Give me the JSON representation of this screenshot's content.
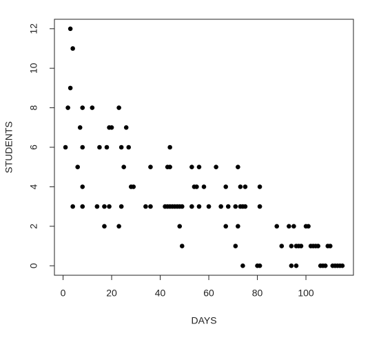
{
  "chart_data": {
    "type": "scatter",
    "x_label": "DAYS",
    "y_label": "STUDENTS",
    "color": "#000000",
    "x": [
      1,
      2,
      3,
      3,
      4,
      4,
      6,
      7,
      8,
      8,
      8,
      8,
      12,
      14,
      15,
      17,
      17,
      18,
      19,
      19,
      20,
      23,
      23,
      24,
      24,
      25,
      26,
      27,
      28,
      29,
      34,
      36,
      36,
      43,
      44,
      44,
      42,
      43,
      44,
      45,
      46,
      47,
      48,
      49,
      48,
      49,
      53,
      54,
      53,
      55,
      56,
      56,
      58,
      60,
      63,
      65,
      67,
      67,
      68,
      71,
      71,
      72,
      72,
      73,
      73,
      74,
      74,
      75,
      75,
      80,
      81,
      81,
      81,
      88,
      90,
      93,
      94,
      94,
      95,
      96,
      96,
      97,
      98,
      100,
      101,
      102,
      103,
      104,
      105,
      106,
      107,
      108,
      109,
      110,
      111,
      112,
      113,
      114,
      115
    ],
    "y": [
      6,
      8,
      9,
      12,
      11,
      3,
      5,
      7,
      8,
      6,
      4,
      3,
      8,
      3,
      6,
      2,
      3,
      6,
      3,
      7,
      7,
      8,
      2,
      6,
      3,
      5,
      7,
      6,
      4,
      4,
      3,
      3,
      5,
      5,
      6,
      5,
      3,
      3,
      3,
      3,
      3,
      3,
      3,
      3,
      2,
      1,
      5,
      4,
      3,
      4,
      5,
      3,
      4,
      3,
      5,
      3,
      4,
      2,
      3,
      1,
      3,
      5,
      2,
      3,
      4,
      0,
      3,
      4,
      3,
      0,
      0,
      4,
      3,
      2,
      1,
      2,
      1,
      0,
      2,
      0,
      1,
      1,
      1,
      2,
      2,
      1,
      1,
      1,
      1,
      0,
      0,
      0,
      1,
      1,
      0,
      0,
      0,
      0,
      0
    ],
    "xlim": [
      -3.56,
      119.56
    ],
    "ylim": [
      -0.48,
      12.48
    ],
    "xticks": [
      0,
      20,
      40,
      60,
      80,
      100
    ],
    "yticks": [
      0,
      2,
      4,
      6,
      8,
      10,
      12
    ]
  }
}
